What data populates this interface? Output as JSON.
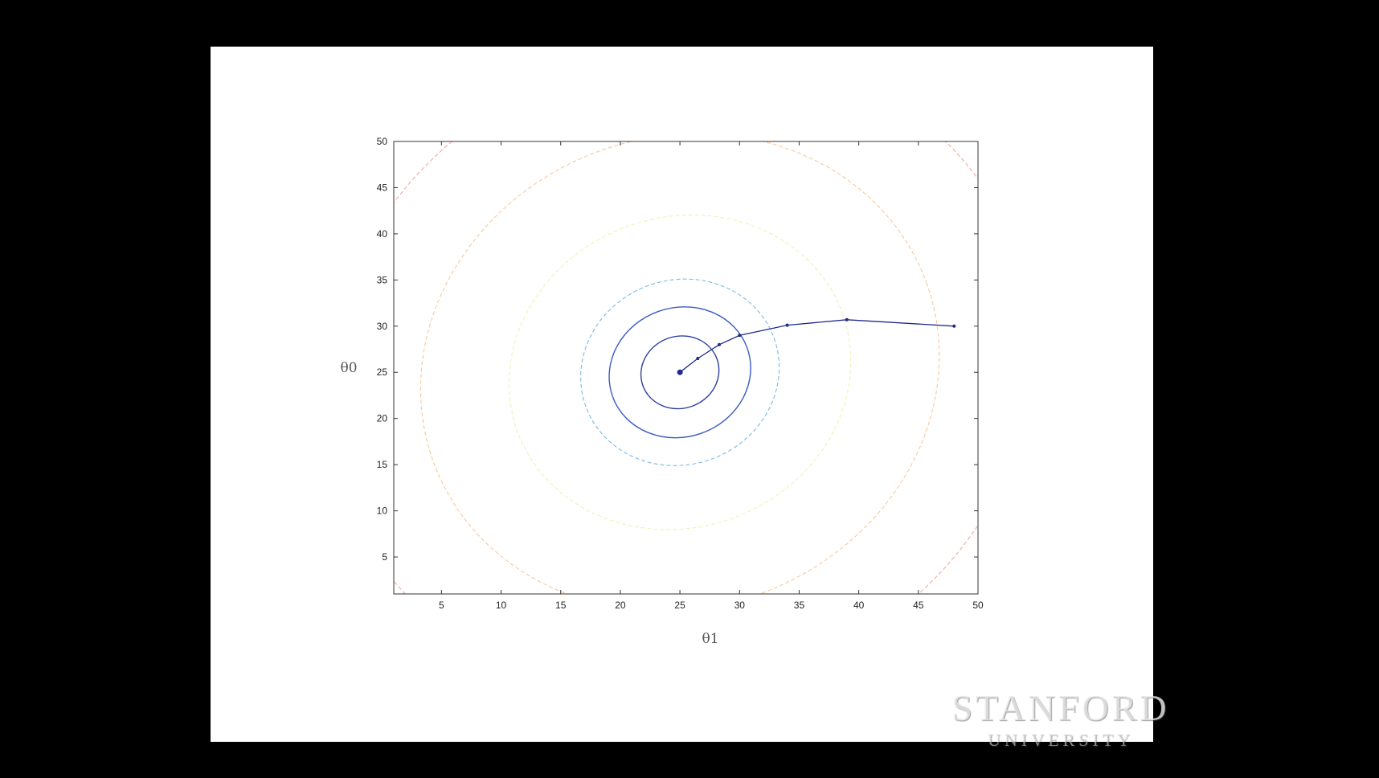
{
  "chart_data": {
    "type": "line",
    "subtype": "contour-plot-with-gradient-descent-path",
    "title": "",
    "xlabel": "θ1",
    "ylabel": "θ0",
    "xlim": [
      1,
      50
    ],
    "ylim": [
      1,
      50
    ],
    "xticks": [
      5,
      10,
      15,
      20,
      25,
      30,
      35,
      40,
      45,
      50
    ],
    "yticks": [
      5,
      10,
      15,
      20,
      25,
      30,
      35,
      40,
      45,
      50
    ],
    "grid": false,
    "contour_center": {
      "x": 25,
      "y": 25
    },
    "contours": [
      {
        "level": 1,
        "rx": 3.3,
        "ry": 3.9,
        "color": "#2e3f9e"
      },
      {
        "level": 2,
        "rx": 6.0,
        "ry": 7.0,
        "color": "#3a5cc0"
      },
      {
        "level": 3,
        "rx": 8.4,
        "ry": 10.0,
        "color": "#7dbbe0"
      },
      {
        "level": 4,
        "rx": 14.5,
        "ry": 16.8,
        "color": "#f3efb8"
      },
      {
        "level": 5,
        "rx": 22.0,
        "ry": 25.5,
        "color": "#f6c9a0"
      },
      {
        "level": 6,
        "rx": 30.0,
        "ry": 34.5,
        "color": "#f1a8a0"
      }
    ],
    "series": [
      {
        "x": [
          48,
          39,
          34,
          30,
          28.3,
          26.5,
          25
        ],
        "y": [
          30,
          30.7,
          30.1,
          29,
          28,
          26.5,
          25
        ],
        "color": "#1f2a8a"
      }
    ]
  },
  "watermark": {
    "line1": "STANFORD",
    "line2": "UNIVERSITY"
  }
}
